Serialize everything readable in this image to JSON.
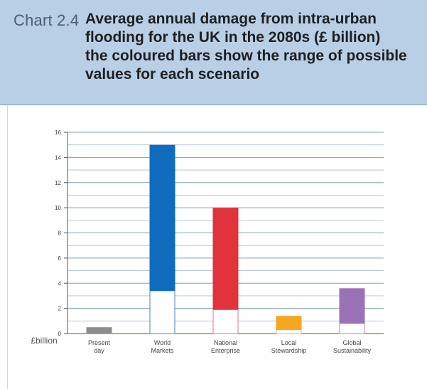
{
  "header": {
    "chart_number": "Chart 2.4",
    "title_lines": [
      "Average annual damage from intra-urban",
      "flooding for the UK in the 2080s (£ billion)",
      "the coloured bars show the range of possible",
      "values for each scenario"
    ]
  },
  "chart_data": {
    "type": "bar",
    "title": "Average annual damage from intra-urban flooding for the UK in the 2080s (£ billion) the coloured bars show the range of possible values for each scenario",
    "ylabel": "£billion",
    "xlabel": "",
    "ylim": [
      0,
      16
    ],
    "yticks": [
      0,
      2,
      4,
      6,
      8,
      10,
      12,
      14,
      16
    ],
    "grid": true,
    "categories": [
      [
        "Present",
        "day"
      ],
      [
        "World",
        "Markets"
      ],
      [
        "National",
        "Enterprise"
      ],
      [
        "Local",
        "Stewardship"
      ],
      [
        "Global",
        "Sustainability"
      ]
    ],
    "ranges": [
      {
        "low": 0.0,
        "high": 0.5,
        "color": "#8c8c8c",
        "outline": "#8c8c8c"
      },
      {
        "low": 3.4,
        "high": 15.0,
        "color": "#0f6cbf",
        "outline": "#3f86cf"
      },
      {
        "low": 1.9,
        "high": 10.0,
        "color": "#e0333c",
        "outline": "#e8737a"
      },
      {
        "low": 0.3,
        "high": 1.4,
        "color": "#f5a623",
        "outline": "#f5b84d"
      },
      {
        "low": 0.8,
        "high": 3.6,
        "color": "#9b72b5",
        "outline": "#a98ac2"
      }
    ]
  }
}
